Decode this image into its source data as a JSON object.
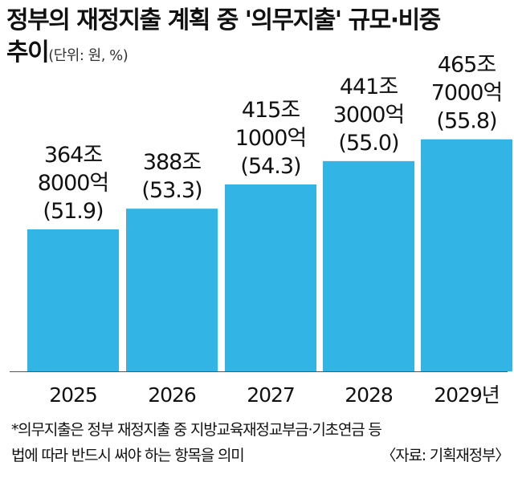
{
  "title": {
    "line1": "정부의 재정지출 계획 중 '의무지출' 규모·비중",
    "line2": "추이",
    "unit": "(단위: 원, %)"
  },
  "chart_data": {
    "type": "bar",
    "categories": [
      "2025",
      "2026",
      "2027",
      "2028",
      "2029년"
    ],
    "values": [
      364.8,
      388.0,
      415.1,
      441.3,
      465.7
    ],
    "value_unit": "조 원",
    "share_percent": [
      51.9,
      53.3,
      54.3,
      55.0,
      55.8
    ],
    "labels": [
      [
        "364조",
        "8000억",
        "(51.9)"
      ],
      [
        "388조",
        "(53.3)"
      ],
      [
        "415조",
        "1000억",
        "(54.3)"
      ],
      [
        "441조",
        "3000억",
        "(55.0)"
      ],
      [
        "465조",
        "7000억",
        "(55.8)"
      ]
    ],
    "colors": {
      "bar": "#32b4e5",
      "baseline": "#555555"
    }
  },
  "footnote": {
    "line1": "*의무지출은 정부 재정지출 중 지방교육재정교부금·기초연금 등",
    "line2": "법에 따라 반드시 써야 하는 항목을 의미",
    "source": "〈자료: 기획재정부〉"
  }
}
